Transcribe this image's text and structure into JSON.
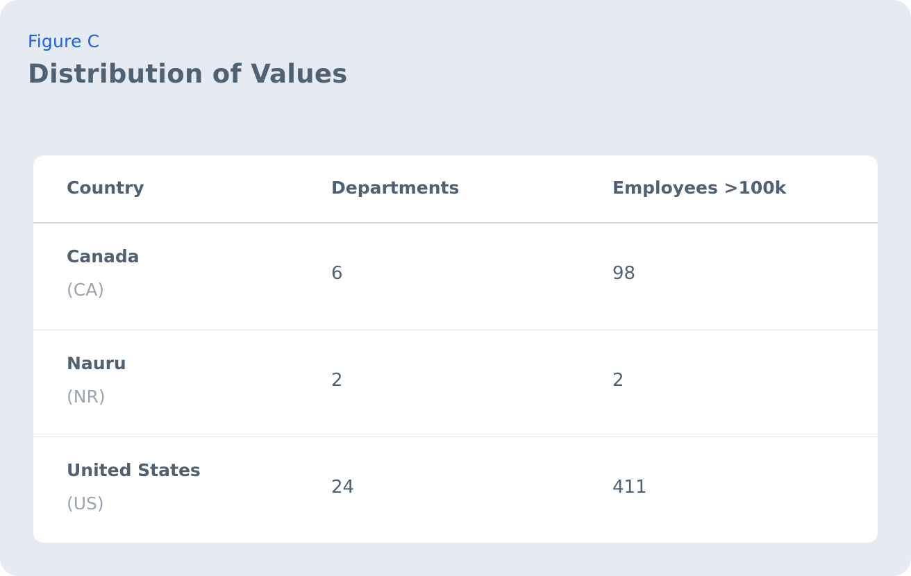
{
  "figure": {
    "eyebrow": "Figure C",
    "title": "Distribution of Values"
  },
  "chart_data": {
    "type": "table",
    "columns": [
      "Country",
      "Departments",
      "Employees >100k"
    ],
    "rows": [
      {
        "country": "Canada",
        "code": "(CA)",
        "departments": "6",
        "employees": "98"
      },
      {
        "country": "Nauru",
        "code": "(NR)",
        "departments": "2",
        "employees": "2"
      },
      {
        "country": "United States",
        "code": "(US)",
        "departments": "24",
        "employees": "411"
      }
    ]
  },
  "colors": {
    "background": "#e6ebf3",
    "panel": "#ffffff",
    "eyebrow": "#1a62e8",
    "text": "#4f6173",
    "muted": "#9aa4b0"
  }
}
